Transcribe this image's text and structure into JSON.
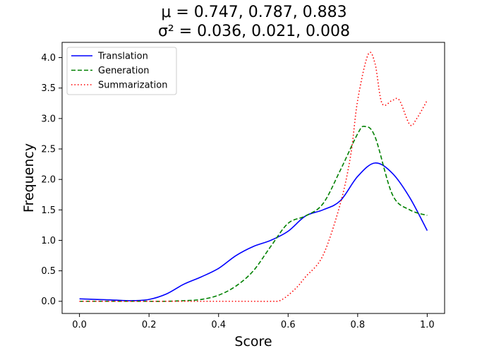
{
  "chart_data": {
    "type": "line",
    "title_lines": [
      "μ = 0.747, 0.787, 0.883",
      "σ² = 0.036, 0.021, 0.008"
    ],
    "xlabel": "Score",
    "ylabel": "Frequency",
    "xlim": [
      -0.05,
      1.05
    ],
    "ylim": [
      -0.2,
      4.25
    ],
    "xticks": [
      0.0,
      0.2,
      0.4,
      0.6,
      0.8,
      1.0
    ],
    "xtick_labels": [
      "0.0",
      "0.2",
      "0.4",
      "0.6",
      "0.8",
      "1.0"
    ],
    "yticks": [
      0.0,
      0.5,
      1.0,
      1.5,
      2.0,
      2.5,
      3.0,
      3.5,
      4.0
    ],
    "ytick_labels": [
      "0.0",
      "0.5",
      "1.0",
      "1.5",
      "2.0",
      "2.5",
      "3.0",
      "3.5",
      "4.0"
    ],
    "grid": false,
    "legend_position": "top-left",
    "series": [
      {
        "name": "Translation",
        "color": "#0000ff",
        "dash": "solid",
        "x": [
          0.0,
          0.05,
          0.1,
          0.15,
          0.2,
          0.25,
          0.3,
          0.35,
          0.4,
          0.45,
          0.5,
          0.55,
          0.6,
          0.65,
          0.7,
          0.75,
          0.8,
          0.85,
          0.9,
          0.95,
          1.0
        ],
        "y": [
          0.04,
          0.03,
          0.02,
          0.01,
          0.03,
          0.12,
          0.28,
          0.4,
          0.54,
          0.75,
          0.9,
          1.0,
          1.15,
          1.4,
          1.5,
          1.65,
          2.05,
          2.27,
          2.1,
          1.7,
          1.16
        ]
      },
      {
        "name": "Generation",
        "color": "#008000",
        "dash": "dashed",
        "x": [
          0.0,
          0.05,
          0.1,
          0.15,
          0.2,
          0.25,
          0.3,
          0.35,
          0.4,
          0.45,
          0.5,
          0.55,
          0.6,
          0.65,
          0.7,
          0.75,
          0.8,
          0.82,
          0.85,
          0.9,
          0.95,
          1.0
        ],
        "y": [
          0.0,
          0.0,
          0.0,
          0.0,
          0.0,
          0.0,
          0.01,
          0.03,
          0.1,
          0.25,
          0.5,
          0.9,
          1.28,
          1.4,
          1.6,
          2.15,
          2.75,
          2.87,
          2.7,
          1.75,
          1.5,
          1.41
        ]
      },
      {
        "name": "Summarization",
        "color": "#ff0000",
        "dash": "dotted",
        "x": [
          0.0,
          0.1,
          0.2,
          0.3,
          0.4,
          0.5,
          0.55,
          0.58,
          0.62,
          0.65,
          0.7,
          0.75,
          0.78,
          0.8,
          0.83,
          0.85,
          0.87,
          0.9,
          0.92,
          0.95,
          0.97,
          1.0
        ],
        "y": [
          0.0,
          0.0,
          0.0,
          0.0,
          0.0,
          0.0,
          0.0,
          0.02,
          0.2,
          0.4,
          0.75,
          1.6,
          2.4,
          3.3,
          4.05,
          3.9,
          3.25,
          3.3,
          3.3,
          2.9,
          3.0,
          3.3
        ]
      }
    ]
  }
}
